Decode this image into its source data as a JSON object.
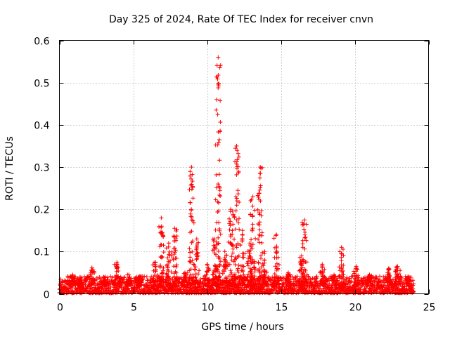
{
  "chart_data": {
    "type": "scatter",
    "title": "Day 325 of 2024, Rate Of TEC Index for receiver cnvn",
    "xlabel": "GPS time / hours",
    "ylabel": "ROTI / TECUs",
    "xlim": [
      0,
      25
    ],
    "ylim": [
      0,
      0.6
    ],
    "xticks": [
      "0",
      "5",
      "10",
      "15",
      "20",
      "25"
    ],
    "yticks": [
      "0",
      "0.1",
      "0.2",
      "0.3",
      "0.4",
      "0.5",
      "0.6"
    ],
    "grid": true,
    "marker": "+",
    "color": "#ff0000",
    "series": [
      {
        "name": "ROTI",
        "baseline": {
          "x_start": 0,
          "x_end": 24,
          "typical_max": 0.04
        },
        "bursts": [
          {
            "x": 0.9,
            "max": 0.045
          },
          {
            "x": 1.4,
            "max": 0.04
          },
          {
            "x": 2.2,
            "max": 0.062
          },
          {
            "x": 3.0,
            "max": 0.04
          },
          {
            "x": 3.9,
            "max": 0.075
          },
          {
            "x": 4.7,
            "max": 0.045
          },
          {
            "x": 5.4,
            "max": 0.04
          },
          {
            "x": 6.5,
            "max": 0.075
          },
          {
            "x": 6.9,
            "max": 0.18
          },
          {
            "x": 7.4,
            "max": 0.12
          },
          {
            "x": 7.8,
            "max": 0.155
          },
          {
            "x": 8.5,
            "max": 0.05
          },
          {
            "x": 8.95,
            "max": 0.3
          },
          {
            "x": 9.3,
            "max": 0.13
          },
          {
            "x": 10.0,
            "max": 0.07
          },
          {
            "x": 10.5,
            "max": 0.13
          },
          {
            "x": 10.75,
            "max": 0.56
          },
          {
            "x": 11.2,
            "max": 0.1
          },
          {
            "x": 11.6,
            "max": 0.2
          },
          {
            "x": 12.0,
            "max": 0.35
          },
          {
            "x": 12.4,
            "max": 0.15
          },
          {
            "x": 12.9,
            "max": 0.12
          },
          {
            "x": 13.1,
            "max": 0.23
          },
          {
            "x": 13.6,
            "max": 0.3
          },
          {
            "x": 13.9,
            "max": 0.1
          },
          {
            "x": 14.7,
            "max": 0.14
          },
          {
            "x": 15.5,
            "max": 0.05
          },
          {
            "x": 16.4,
            "max": 0.09
          },
          {
            "x": 16.6,
            "max": 0.175
          },
          {
            "x": 17.8,
            "max": 0.07
          },
          {
            "x": 18.6,
            "max": 0.045
          },
          {
            "x": 19.1,
            "max": 0.11
          },
          {
            "x": 20.1,
            "max": 0.065
          },
          {
            "x": 21.0,
            "max": 0.045
          },
          {
            "x": 22.3,
            "max": 0.06
          },
          {
            "x": 22.9,
            "max": 0.065
          },
          {
            "x": 23.6,
            "max": 0.04
          }
        ]
      }
    ]
  }
}
